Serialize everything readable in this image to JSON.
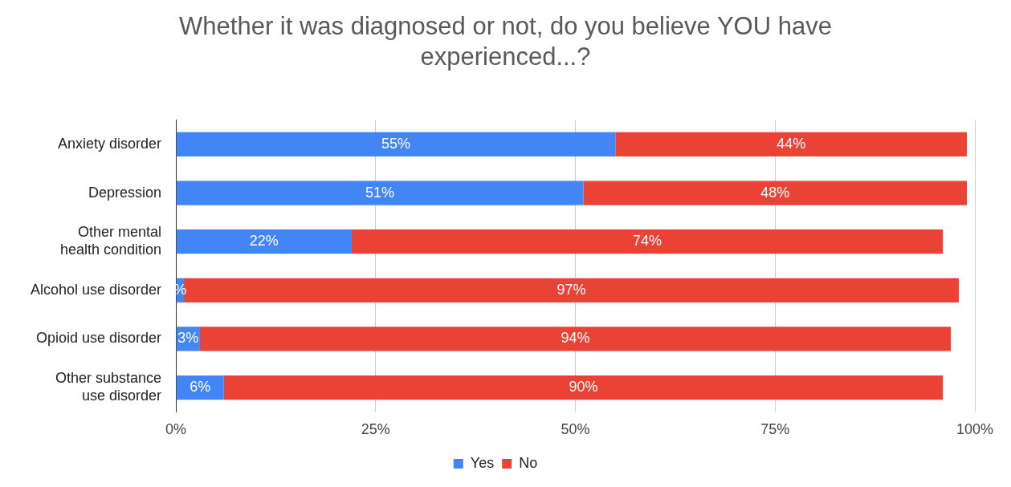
{
  "chart_data": {
    "type": "bar",
    "orientation": "horizontal",
    "stacked": true,
    "title": "Whether it was diagnosed or not, do you believe YOU have experienced...?",
    "categories": [
      "Anxiety disorder",
      "Depression",
      "Other mental health condition",
      "Alcohol use disorder",
      "Opioid use disorder",
      "Other substance use disorder"
    ],
    "series": [
      {
        "name": "Yes",
        "color": "#4285f4",
        "values": [
          55,
          51,
          22,
          1,
          3,
          6
        ],
        "value_labels": [
          "55%",
          "51%",
          "22%",
          "%",
          "3%",
          "6%"
        ]
      },
      {
        "name": "No",
        "color": "#ea4335",
        "values": [
          44,
          48,
          74,
          97,
          94,
          90
        ],
        "value_labels": [
          "44%",
          "48%",
          "74%",
          "97%",
          "94%",
          "90%"
        ]
      }
    ],
    "xlim": [
      0,
      100
    ],
    "xticks": [
      {
        "value": 0,
        "label": "0%"
      },
      {
        "value": 25,
        "label": "25%"
      },
      {
        "value": 50,
        "label": "50%"
      },
      {
        "value": 75,
        "label": "75%"
      },
      {
        "value": 100,
        "label": "100%"
      }
    ],
    "grid": "x",
    "legend": "bottom"
  }
}
